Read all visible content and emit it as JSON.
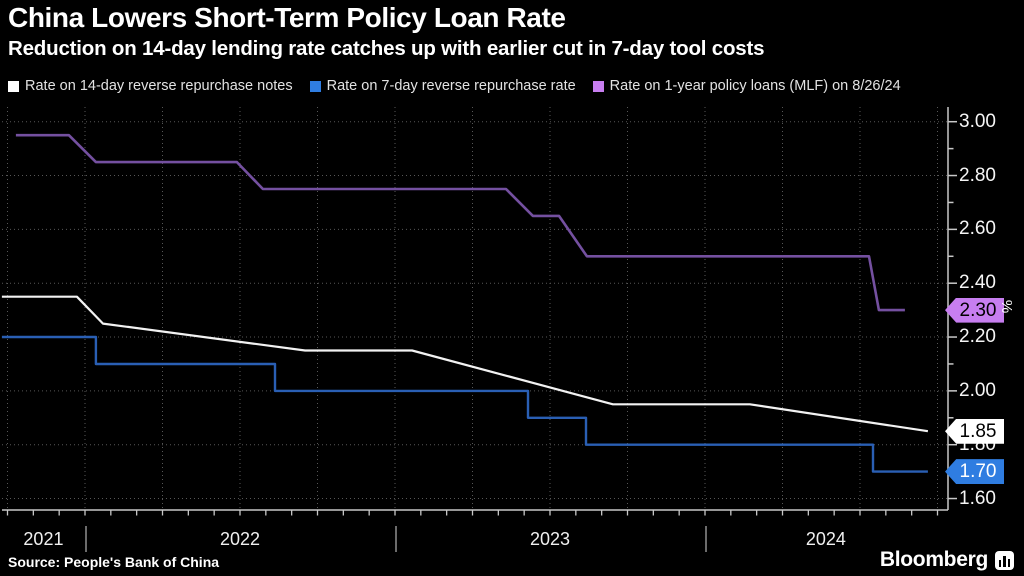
{
  "title": "China Lowers Short-Term Policy Loan Rate",
  "subtitle": "Reduction on 14-day lending rate catches up with earlier cut in 7-day tool costs",
  "legend": [
    {
      "label": "Rate on 14-day reverse repurchase notes",
      "color": "#ffffff"
    },
    {
      "label": "Rate on 7-day reverse repurchase rate",
      "color": "#2f7de1"
    },
    {
      "label": "Rate on 1-year policy loans (MLF) on 8/26/24",
      "color": "#c77ef0"
    }
  ],
  "chart_data": {
    "type": "line",
    "title": "China Lowers Short-Term Policy Loan Rate",
    "subtitle": "Reduction on 14-day lending rate catches up with earlier cut in 7-day tool costs",
    "ylabel": "%",
    "x_unit": "decimal_year",
    "xlim": [
      2021.732,
      2024.784
    ],
    "ylim": [
      1.556,
      3.055
    ],
    "grid": true,
    "legend_position": "top",
    "yticks": {
      "major": [
        3.0,
        2.8,
        2.6,
        2.4,
        2.2,
        2.0,
        1.8,
        1.6
      ],
      "labels": [
        "3.00",
        "2.80",
        "2.60",
        "2.40",
        "2.20",
        "2.00",
        "1.80",
        "1.60"
      ],
      "minor_step": 0.1
    },
    "xaxis": {
      "monthly_tick_step": 0.08333,
      "quarter_grid_step": 0.25,
      "dividers": [
        2022,
        2023,
        2024
      ],
      "year_labels": [
        {
          "label": "2021",
          "t": 2021.866
        },
        {
          "label": "2022",
          "t": 2022.5
        },
        {
          "label": "2023",
          "t": 2023.5
        },
        {
          "label": "2024",
          "t": 2024.39
        }
      ]
    },
    "series": [
      {
        "name": "Rate on 14-day reverse repurchase notes",
        "color": "#f2f2f2",
        "width": 2.2,
        "points": [
          [
            2021.732,
            2.35
          ],
          [
            2021.974,
            2.35
          ],
          [
            2022.058,
            2.25
          ],
          [
            2022.71,
            2.15
          ],
          [
            2023.055,
            2.15
          ],
          [
            2023.703,
            1.95
          ],
          [
            2024.145,
            1.95
          ],
          [
            2024.719,
            1.85
          ]
        ]
      },
      {
        "name": "Rate on 7-day reverse repurchase rate",
        "color": "#2a5fb4",
        "width": 2.4,
        "points": [
          [
            2021.732,
            2.2
          ],
          [
            2022.035,
            2.2
          ],
          [
            2022.035,
            2.1
          ],
          [
            2022.613,
            2.1
          ],
          [
            2022.613,
            2.0
          ],
          [
            2023.429,
            2.0
          ],
          [
            2023.429,
            1.9
          ],
          [
            2023.616,
            1.9
          ],
          [
            2023.616,
            1.8
          ],
          [
            2024.542,
            1.8
          ],
          [
            2024.542,
            1.7
          ],
          [
            2024.719,
            1.7
          ]
        ]
      },
      {
        "name": "Rate on 1-year policy loans (MLF) on 8/26/24",
        "color": "#7450a0",
        "width": 2.6,
        "points": [
          [
            2021.777,
            2.95
          ],
          [
            2021.948,
            2.95
          ],
          [
            2022.035,
            2.85
          ],
          [
            2022.49,
            2.85
          ],
          [
            2022.574,
            2.75
          ],
          [
            2023.358,
            2.75
          ],
          [
            2023.445,
            2.65
          ],
          [
            2023.529,
            2.65
          ],
          [
            2023.619,
            2.5
          ],
          [
            2024.529,
            2.5
          ],
          [
            2024.561,
            2.3
          ],
          [
            2024.645,
            2.3
          ]
        ]
      }
    ],
    "badges": [
      {
        "label": "2.30",
        "value": 2.3,
        "bg": "#c77ef0",
        "fg": "#000000"
      },
      {
        "label": "1.85",
        "value": 1.85,
        "bg": "#ffffff",
        "fg": "#000000"
      },
      {
        "label": "1.70",
        "value": 1.7,
        "bg": "#2f7de1",
        "fg": "#ffffff"
      }
    ]
  },
  "source": "Source: People's Bank of China",
  "brand": "Bloomberg"
}
